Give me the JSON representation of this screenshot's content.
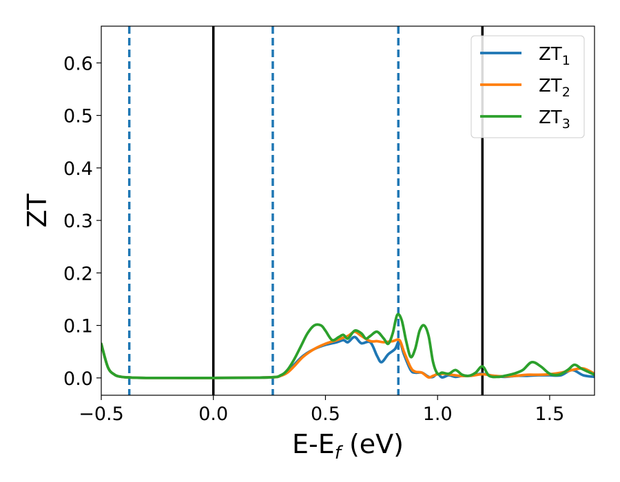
{
  "chart_data": {
    "type": "line",
    "xlabel": "E-E",
    "xlabel_sub": "f",
    "xlabel_unit": " (eV)",
    "ylabel": "ZT",
    "xlim": [
      -0.5,
      1.7
    ],
    "ylim": [
      -0.033,
      0.67
    ],
    "xticks": [
      -0.5,
      0.0,
      0.5,
      1.0,
      1.5
    ],
    "xtick_labels": [
      "−0.5",
      "0.0",
      "0.5",
      "1.0",
      "1.5"
    ],
    "yticks": [
      0.0,
      0.1,
      0.2,
      0.3,
      0.4,
      0.5,
      0.6
    ],
    "ytick_labels": [
      "0.0",
      "0.1",
      "0.2",
      "0.3",
      "0.4",
      "0.5",
      "0.6"
    ],
    "grid": false,
    "legend_position": "top-right",
    "vlines_solid": [
      0.0,
      1.2
    ],
    "vlines_dashed": [
      -0.375,
      0.265,
      0.825
    ],
    "series": [
      {
        "name": "ZT",
        "name_sub": "1",
        "color": "#1f77b4",
        "x": [
          -0.5,
          -0.47,
          -0.44,
          -0.41,
          -0.38,
          -0.3,
          0.0,
          0.25,
          0.3,
          0.33,
          0.36,
          0.4,
          0.45,
          0.5,
          0.55,
          0.58,
          0.6,
          0.63,
          0.66,
          0.7,
          0.73,
          0.75,
          0.78,
          0.81,
          0.83,
          0.85,
          0.88,
          0.9,
          0.93,
          0.96,
          0.98,
          1.0,
          1.02,
          1.05,
          1.08,
          1.11,
          1.14,
          1.17,
          1.2,
          1.25,
          1.3,
          1.35,
          1.4,
          1.45,
          1.5,
          1.55,
          1.6,
          1.65,
          1.7
        ],
        "values": [
          0.065,
          0.02,
          0.006,
          0.002,
          0.001,
          0.0,
          0.0,
          0.001,
          0.004,
          0.012,
          0.025,
          0.042,
          0.055,
          0.063,
          0.068,
          0.072,
          0.068,
          0.078,
          0.066,
          0.068,
          0.042,
          0.03,
          0.045,
          0.055,
          0.07,
          0.045,
          0.015,
          0.01,
          0.01,
          0.002,
          0.002,
          0.008,
          0.001,
          0.005,
          0.002,
          0.004,
          0.004,
          0.006,
          0.008,
          0.004,
          0.002,
          0.004,
          0.004,
          0.005,
          0.005,
          0.005,
          0.015,
          0.005,
          0.002
        ]
      },
      {
        "name": "ZT",
        "name_sub": "2",
        "color": "#ff7f0e",
        "x": [
          -0.5,
          -0.47,
          -0.44,
          -0.41,
          -0.38,
          -0.3,
          0.0,
          0.25,
          0.3,
          0.33,
          0.36,
          0.4,
          0.45,
          0.5,
          0.55,
          0.6,
          0.63,
          0.66,
          0.7,
          0.73,
          0.76,
          0.8,
          0.83,
          0.85,
          0.88,
          0.9,
          0.93,
          0.96,
          0.98,
          1.0,
          1.03,
          1.06,
          1.1,
          1.15,
          1.2,
          1.25,
          1.3,
          1.35,
          1.4,
          1.45,
          1.5,
          1.55,
          1.6,
          1.65,
          1.7
        ],
        "values": [
          0.065,
          0.02,
          0.006,
          0.002,
          0.001,
          0.0,
          0.0,
          0.001,
          0.004,
          0.01,
          0.022,
          0.04,
          0.055,
          0.065,
          0.072,
          0.08,
          0.088,
          0.08,
          0.07,
          0.07,
          0.068,
          0.07,
          0.072,
          0.05,
          0.02,
          0.012,
          0.01,
          0.001,
          0.004,
          0.007,
          0.008,
          0.006,
          0.004,
          0.004,
          0.007,
          0.004,
          0.003,
          0.004,
          0.006,
          0.006,
          0.007,
          0.01,
          0.015,
          0.018,
          0.008
        ]
      },
      {
        "name": "ZT",
        "name_sub": "3",
        "color": "#2ca02c",
        "x": [
          -0.5,
          -0.47,
          -0.44,
          -0.41,
          -0.38,
          -0.3,
          0.0,
          0.25,
          0.3,
          0.33,
          0.36,
          0.39,
          0.42,
          0.45,
          0.48,
          0.5,
          0.53,
          0.56,
          0.58,
          0.6,
          0.63,
          0.66,
          0.68,
          0.7,
          0.73,
          0.76,
          0.78,
          0.8,
          0.82,
          0.84,
          0.86,
          0.88,
          0.9,
          0.92,
          0.94,
          0.96,
          0.98,
          1.0,
          1.02,
          1.05,
          1.08,
          1.11,
          1.14,
          1.17,
          1.2,
          1.23,
          1.27,
          1.3,
          1.34,
          1.38,
          1.42,
          1.46,
          1.5,
          1.54,
          1.58,
          1.61,
          1.64,
          1.67,
          1.7
        ],
        "values": [
          0.065,
          0.02,
          0.006,
          0.002,
          0.001,
          0.0,
          0.0,
          0.001,
          0.005,
          0.015,
          0.035,
          0.06,
          0.085,
          0.1,
          0.1,
          0.09,
          0.072,
          0.078,
          0.082,
          0.075,
          0.09,
          0.085,
          0.075,
          0.08,
          0.088,
          0.075,
          0.065,
          0.085,
          0.12,
          0.11,
          0.07,
          0.04,
          0.055,
          0.09,
          0.1,
          0.08,
          0.03,
          0.008,
          0.01,
          0.008,
          0.015,
          0.006,
          0.004,
          0.01,
          0.022,
          0.004,
          0.002,
          0.004,
          0.008,
          0.015,
          0.03,
          0.022,
          0.008,
          0.006,
          0.015,
          0.025,
          0.018,
          0.012,
          0.006
        ]
      }
    ]
  }
}
